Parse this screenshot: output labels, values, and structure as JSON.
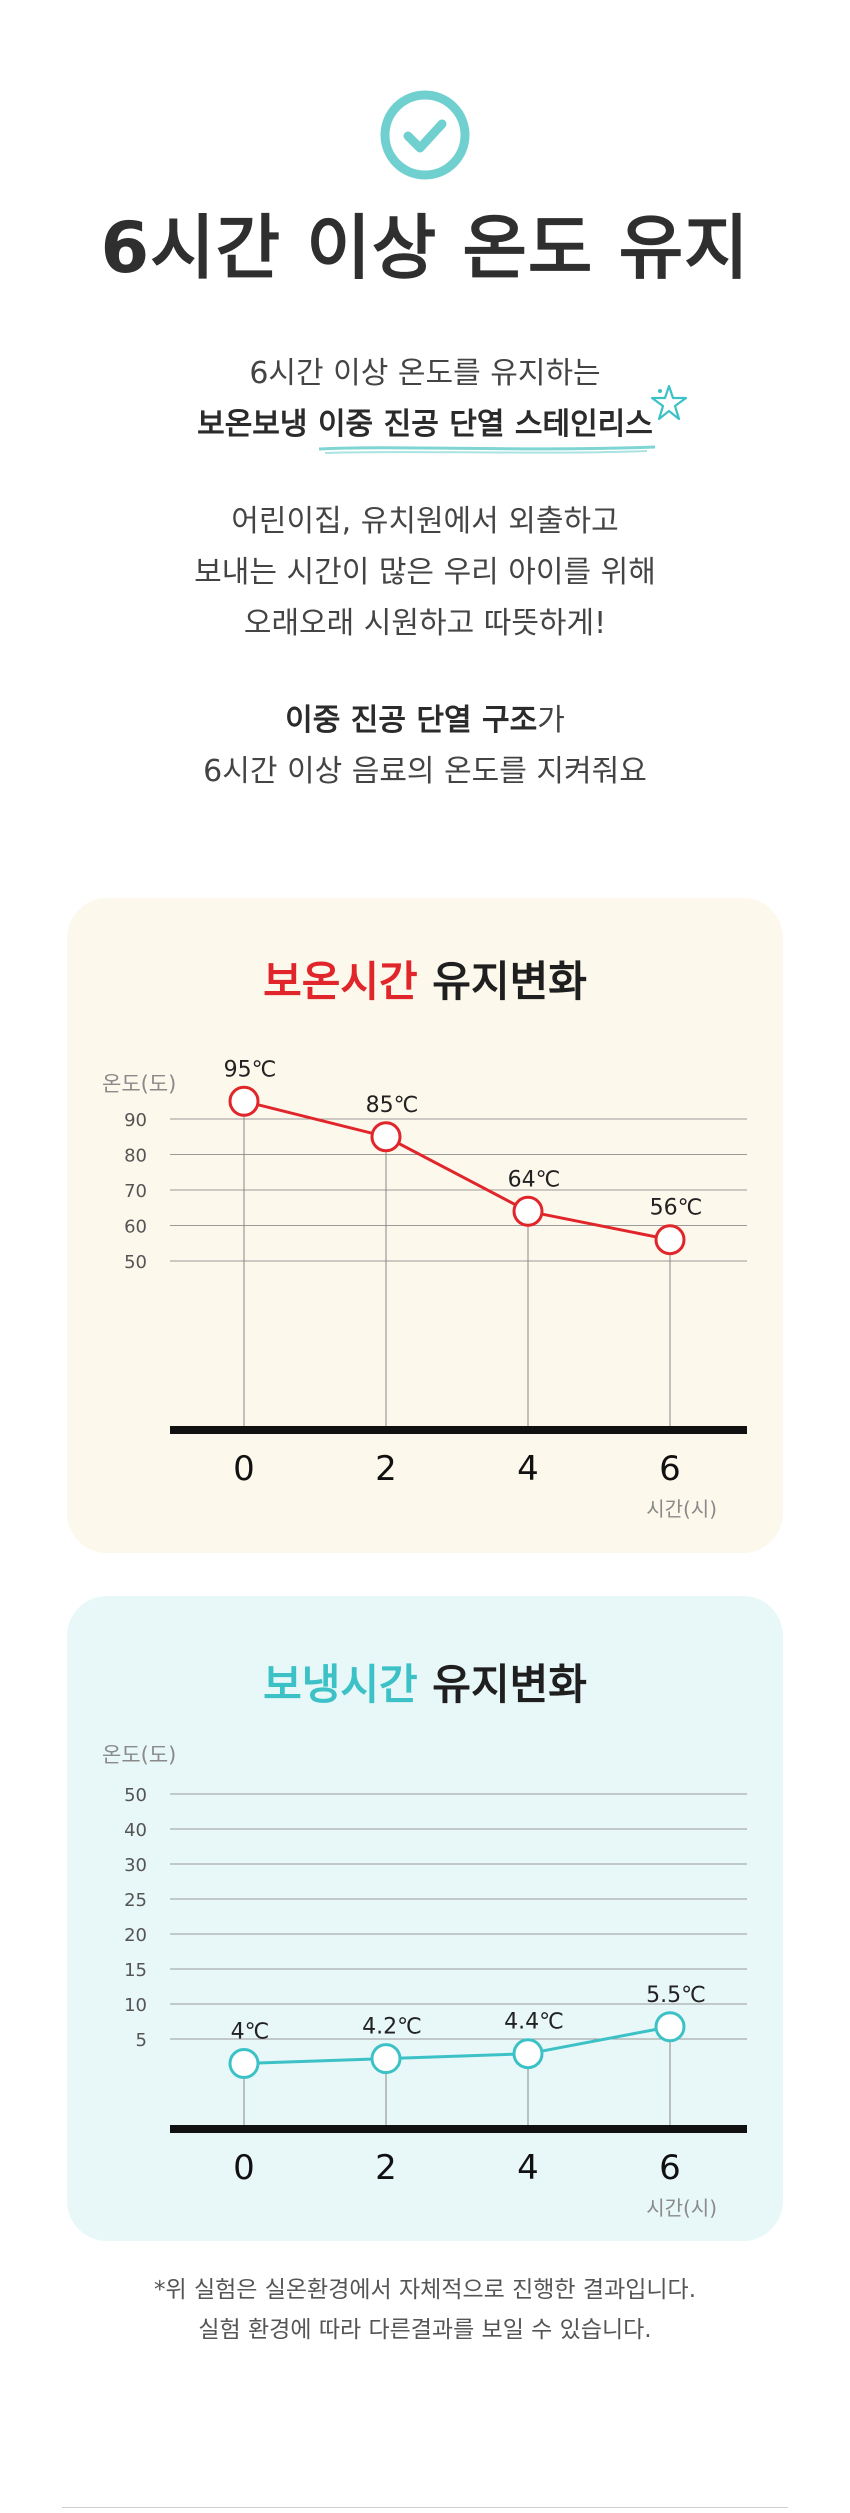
{
  "header": {
    "check_icon": "check-circle-icon",
    "check_color": "#6fd0cf",
    "title": "6시간 이상 온도 유지"
  },
  "intro": {
    "line1": "6시간 이상 온도를 유지하는",
    "line2": "보온보냉 이중 진공 단열 스테인리스",
    "para1": [
      "어린이집, 유치원에서 외출하고",
      "보내는 시간이 많은 우리 아이를 위해",
      "오래오래 시원하고 따뜻하게!"
    ],
    "para2_bold": "이중 진공 단열 구조",
    "para2_rest": "가",
    "para2_line2": "6시간 이상 음료의 온도를 지켜줘요"
  },
  "hold_card": {
    "title_highlight": "보온시간",
    "title_rest": " 유지변화"
  },
  "cold_card": {
    "title_highlight": "보냉시간",
    "title_rest": " 유지변화"
  },
  "chart_data": [
    {
      "type": "line",
      "title": "보온시간 유지변화",
      "ylabel": "온도(도)",
      "xlabel": "시간(시)",
      "x": [
        0,
        2,
        4,
        6
      ],
      "yticks": [
        90,
        80,
        70,
        60,
        50
      ],
      "series": [
        {
          "values": [
            95,
            85,
            64,
            56
          ]
        }
      ],
      "data_labels": [
        "95℃",
        "85℃",
        "64℃",
        "56℃"
      ],
      "color": "#e0262a",
      "grid": true
    },
    {
      "type": "line",
      "title": "보냉시간 유지변화",
      "ylabel": "온도(도)",
      "xlabel": "시간(시)",
      "x": [
        0,
        2,
        4,
        6
      ],
      "yticks": [
        50,
        40,
        30,
        25,
        20,
        15,
        10,
        5
      ],
      "series": [
        {
          "values": [
            4,
            4.2,
            4.4,
            5.5
          ]
        }
      ],
      "data_labels": [
        "4℃",
        "4.2℃",
        "4.4℃",
        "5.5℃"
      ],
      "color": "#3cc2c6",
      "grid": true
    }
  ],
  "footnote": {
    "line1": "*위 실험은 실온환경에서 자체적으로 진행한 결과입니다.",
    "line2": "실험 환경에 따라 다른결과를 보일 수 있습니다."
  }
}
